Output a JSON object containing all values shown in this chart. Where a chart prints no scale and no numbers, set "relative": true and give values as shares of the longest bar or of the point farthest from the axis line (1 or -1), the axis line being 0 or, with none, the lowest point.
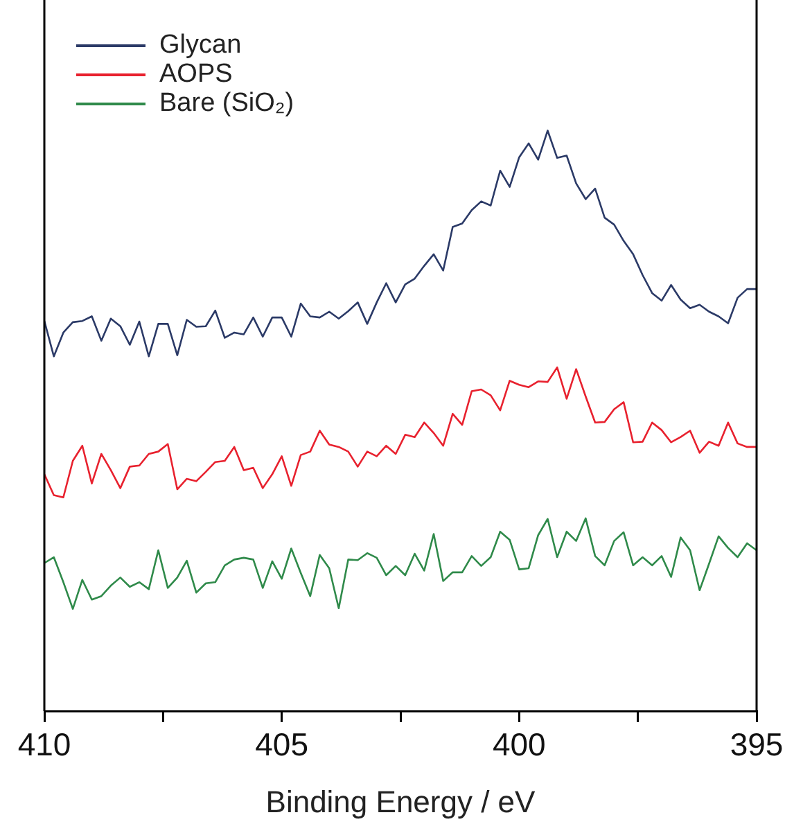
{
  "chart_data": {
    "type": "line",
    "xlabel": "Binding Energy / eV",
    "relative": true,
    "legend": "top left",
    "grid": false,
    "xlim": [
      410,
      395
    ],
    "xticks": [
      410,
      {
        "value": 407.5,
        "label": null
      },
      405,
      {
        "value": 402.5,
        "label": null
      },
      400,
      {
        "value": 397.5,
        "label": null
      },
      395
    ],
    "x": [
      410,
      409.8,
      409.6,
      409.4,
      409.2,
      409,
      408.8,
      408.6,
      408.4,
      408.2,
      408,
      407.8,
      407.6,
      407.4,
      407.2,
      407,
      406.8,
      406.6,
      406.4,
      406.2,
      406,
      405.8,
      405.6,
      405.4,
      405.2,
      405,
      404.8,
      404.6,
      404.4,
      404.2,
      404,
      403.8,
      403.6,
      403.4,
      403.2,
      403,
      402.8,
      402.6,
      402.4,
      402.2,
      402,
      401.8,
      401.6,
      401.4,
      401.2,
      401,
      400.8,
      400.6,
      400.4,
      400.2,
      400,
      399.8,
      399.6,
      399.4,
      399.2,
      399,
      398.8,
      398.6,
      398.4,
      398.2,
      398,
      397.8,
      397.6,
      397.4,
      397.2,
      397,
      396.8,
      396.6,
      396.4,
      396.2,
      396,
      395.8,
      395.6,
      395.4,
      395.2,
      395
    ],
    "series": [
      {
        "name": "Glycan",
        "color": "#2b3a67",
        "values": [
          0.672,
          0.611,
          0.652,
          0.67,
          0.672,
          0.68,
          0.638,
          0.676,
          0.663,
          0.631,
          0.671,
          0.611,
          0.667,
          0.667,
          0.613,
          0.674,
          0.662,
          0.663,
          0.69,
          0.643,
          0.652,
          0.649,
          0.678,
          0.645,
          0.678,
          0.678,
          0.645,
          0.702,
          0.68,
          0.678,
          0.688,
          0.676,
          0.689,
          0.704,
          0.667,
          0.704,
          0.737,
          0.704,
          0.735,
          0.745,
          0.767,
          0.787,
          0.759,
          0.834,
          0.84,
          0.863,
          0.878,
          0.871,
          0.931,
          0.903,
          0.954,
          0.978,
          0.95,
          1.0,
          0.953,
          0.957,
          0.909,
          0.882,
          0.9,
          0.85,
          0.838,
          0.81,
          0.787,
          0.751,
          0.72,
          0.707,
          0.734,
          0.709,
          0.694,
          0.7,
          0.688,
          0.68,
          0.668,
          0.712,
          0.727,
          0.727
        ]
      },
      {
        "name": "AOPS",
        "color": "#e8212e",
        "values": [
          0.408,
          0.372,
          0.368,
          0.431,
          0.457,
          0.392,
          0.443,
          0.415,
          0.384,
          0.421,
          0.423,
          0.443,
          0.447,
          0.46,
          0.382,
          0.4,
          0.396,
          0.412,
          0.429,
          0.431,
          0.455,
          0.415,
          0.419,
          0.384,
          0.408,
          0.439,
          0.388,
          0.441,
          0.447,
          0.483,
          0.459,
          0.455,
          0.447,
          0.421,
          0.447,
          0.439,
          0.457,
          0.443,
          0.476,
          0.472,
          0.497,
          0.479,
          0.457,
          0.512,
          0.493,
          0.551,
          0.554,
          0.544,
          0.518,
          0.569,
          0.562,
          0.558,
          0.568,
          0.567,
          0.592,
          0.538,
          0.589,
          0.542,
          0.497,
          0.498,
          0.52,
          0.532,
          0.463,
          0.464,
          0.497,
          0.484,
          0.463,
          0.472,
          0.483,
          0.445,
          0.464,
          0.457,
          0.497,
          0.461,
          0.455,
          0.455
        ]
      },
      {
        "name": "Bare (SiO₂)",
        "color": "#2f8a4a",
        "values": [
          0.255,
          0.265,
          0.222,
          0.176,
          0.226,
          0.192,
          0.198,
          0.216,
          0.23,
          0.214,
          0.222,
          0.21,
          0.277,
          0.212,
          0.23,
          0.259,
          0.204,
          0.22,
          0.222,
          0.251,
          0.261,
          0.264,
          0.261,
          0.212,
          0.258,
          0.228,
          0.28,
          0.238,
          0.198,
          0.269,
          0.246,
          0.177,
          0.261,
          0.26,
          0.272,
          0.264,
          0.234,
          0.25,
          0.234,
          0.271,
          0.242,
          0.305,
          0.224,
          0.239,
          0.239,
          0.267,
          0.25,
          0.265,
          0.309,
          0.295,
          0.244,
          0.246,
          0.303,
          0.331,
          0.265,
          0.309,
          0.293,
          0.332,
          0.267,
          0.251,
          0.293,
          0.308,
          0.251,
          0.265,
          0.251,
          0.267,
          0.231,
          0.299,
          0.277,
          0.208,
          0.254,
          0.301,
          0.281,
          0.265,
          0.289,
          0.277
        ]
      }
    ]
  }
}
